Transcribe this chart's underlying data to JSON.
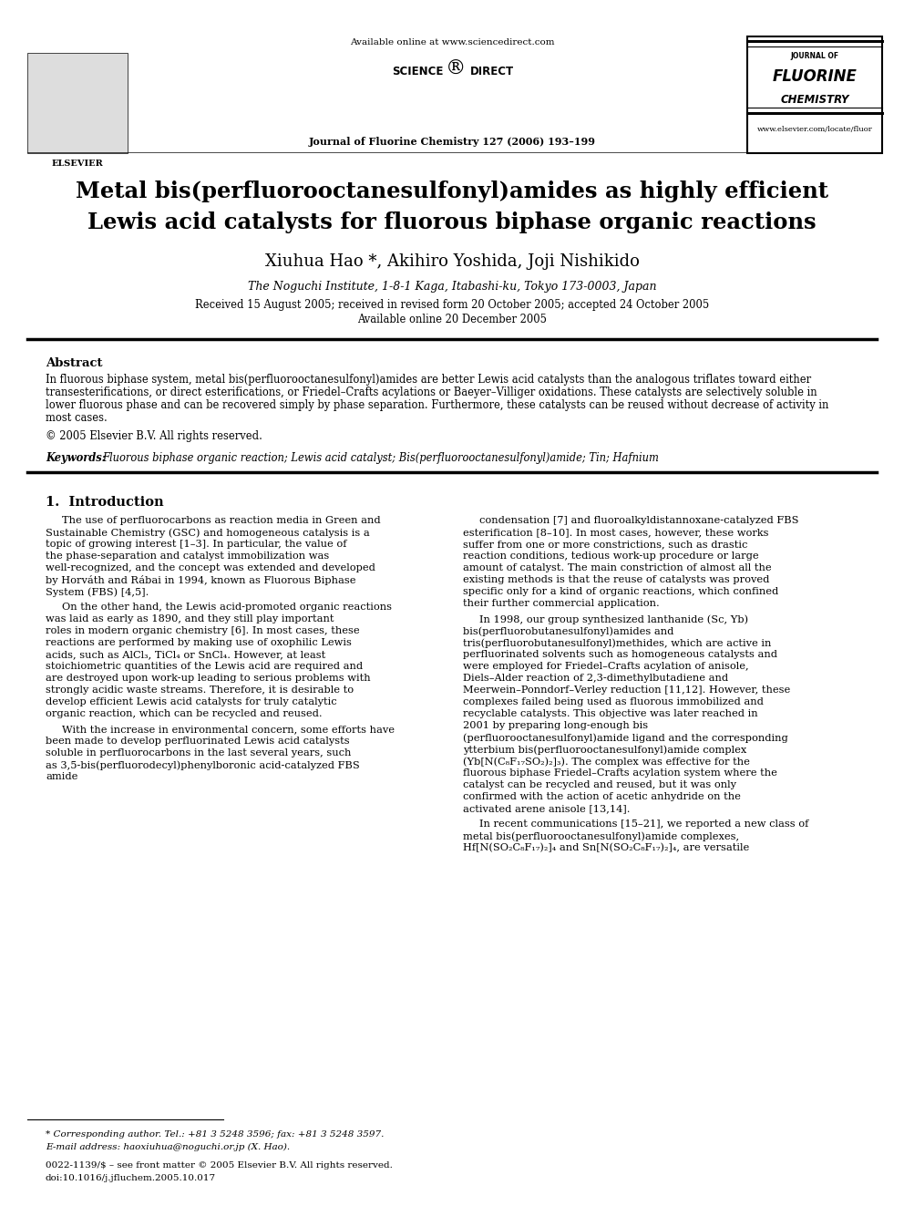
{
  "bg_color": "#ffffff",
  "title_line1": "Metal bis(perfluorooctanesulfonyl)amides as highly efficient",
  "title_line2": "Lewis acid catalysts for fluorous biphase organic reactions",
  "authors": "Xiuhua Hao *, Akihiro Yoshida, Joji Nishikido",
  "affiliation": "The Noguchi Institute, 1-8-1 Kaga, Itabashi-ku, Tokyo 173-0003, Japan",
  "received": "Received 15 August 2005; received in revised form 20 October 2005; accepted 24 October 2005",
  "available": "Available online 20 December 2005",
  "journal_header": "Journal of Fluorine Chemistry 127 (2006) 193–199",
  "available_online": "Available online at www.sciencedirect.com",
  "elsevier_url": "www.elsevier.com/locate/fluor",
  "abstract_title": "Abstract",
  "copyright": "© 2005 Elsevier B.V. All rights reserved.",
  "keywords_label": "Keywords:",
  "keywords_text": "Fluorous biphase organic reaction; Lewis acid catalyst; Bis(perfluorooctanesulfonyl)amide; Tin; Hafnium",
  "section1_title": "1.  Introduction",
  "intro_col1_p1": "The use of perfluorocarbons as reaction media in Green and Sustainable Chemistry (GSC) and homogeneous catalysis is a topic of growing interest [1–3]. In particular, the value of the phase-separation and catalyst immobilization was well-recognized, and the concept was extended and developed by Horváth and Rábai in 1994, known as Fluorous Biphase System (FBS) [4,5].",
  "intro_col1_p2": "On the other hand, the Lewis acid-promoted organic reactions was laid as early as 1890, and they still play important roles in modern organic chemistry [6]. In most cases, these reactions are performed by making use of oxophilic Lewis acids, such as AlCl₃, TiCl₄ or SnCl₄. However, at least stoichiometric quantities of the Lewis acid are required and are destroyed upon work-up leading to serious problems with strongly acidic waste streams. Therefore, it is desirable to develop efficient Lewis acid catalysts for truly catalytic organic reaction, which can be recycled and reused.",
  "intro_col1_p3": "With the increase in environmental concern, some efforts have been made to develop perfluorinated Lewis acid catalysts soluble in perfluorocarbons in the last several years, such as 3,5-bis(perfluorodecyl)phenylboronic acid-catalyzed FBS amide",
  "intro_col2_p1": "condensation [7] and fluoroalkyldistannoxane-catalyzed FBS esterification [8–10]. In most cases, however, these works suffer from one or more constrictions, such as drastic reaction conditions, tedious work-up procedure or large amount of catalyst. The main constriction of almost all the existing methods is that the reuse of catalysts was proved specific only for a kind of organic reactions, which confined their further commercial application.",
  "intro_col2_p2": "In 1998, our group synthesized lanthanide (Sc, Yb) bis(perfluorobutanesulfonyl)amides and tris(perfluorobutanesulfonyl)methides, which are active in perfluorinated solvents such as homogeneous catalysts and were employed for Friedel–Crafts acylation of anisole, Diels–Alder reaction of 2,3-dimethylbutadiene and Meerwein–Ponndorf–Verley reduction [11,12]. However, these complexes failed being used as fluorous immobilized and recyclable catalysts. This objective was later reached in 2001 by preparing long-enough bis (perfluorooctanesulfonyl)amide ligand and the corresponding ytterbium bis(perfluorooctanesulfonyl)amide complex (Yb[N(C₈F₁₇SO₂)₂]₃). The complex was effective for the fluorous biphase Friedel–Crafts acylation system where the catalyst can be recycled and reused, but it was only confirmed with the action of acetic anhydride on the activated arene anisole [13,14].",
  "intro_col2_p3": "In recent communications [15–21], we reported a new class of metal bis(perfluorooctanesulfonyl)amide complexes, Hf[N(SO₂C₈F₁₇)₂]₄ and Sn[N(SO₂C₈F₁₇)₂]₄, are versatile",
  "footnote1": "* Corresponding author. Tel.: +81 3 5248 3596; fax: +81 3 5248 3597.",
  "footnote2": "E-mail address: haoxiuhua@noguchi.or.jp (X. Hao).",
  "footnote3": "0022-1139/$ – see front matter © 2005 Elsevier B.V. All rights reserved.",
  "footnote4": "doi:10.1016/j.jfluchem.2005.10.017"
}
